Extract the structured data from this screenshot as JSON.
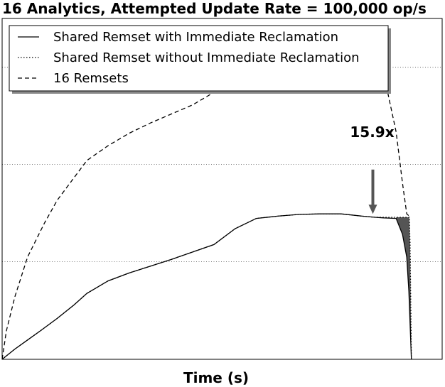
{
  "chart_data": {
    "type": "line",
    "title": "16 Analytics, Attempted Update Rate = 100,000 op/s",
    "xlabel": "Time (s)",
    "ylabel": "",
    "x_ticks_shown": false,
    "y_ticks_shown": false,
    "grid": "horizontal dotted",
    "legend_position": "top-left",
    "xlim": [
      0,
      100
    ],
    "ylim": [
      0,
      30
    ],
    "series": [
      {
        "name": "Shared Remset with Immediate Reclamation",
        "style": "solid",
        "color": "#000000",
        "x": [
          0,
          3,
          6,
          9,
          13,
          17,
          20,
          25,
          30,
          40,
          50,
          55,
          60,
          65,
          70,
          75,
          80,
          85,
          88,
          90,
          93,
          94.5,
          95.5,
          96,
          96.4,
          96.6
        ],
        "y": [
          0,
          0.9,
          1.7,
          2.5,
          3.6,
          4.8,
          5.8,
          6.9,
          7.6,
          8.8,
          10.1,
          11.5,
          12.4,
          12.6,
          12.75,
          12.8,
          12.8,
          12.6,
          12.5,
          12.45,
          12.4,
          11.0,
          9.0,
          6.0,
          2.0,
          0
        ]
      },
      {
        "name": "Shared Remset without Immediate Reclamation",
        "style": "dotted",
        "color": "#000000",
        "x": [
          0,
          3,
          6,
          9,
          13,
          17,
          20,
          25,
          30,
          40,
          50,
          55,
          60,
          65,
          70,
          75,
          80,
          85,
          88,
          90,
          93,
          95.5,
          96.1,
          96.3,
          96.6
        ],
        "y": [
          0,
          0.9,
          1.7,
          2.5,
          3.6,
          4.8,
          5.8,
          6.9,
          7.6,
          8.8,
          10.1,
          11.5,
          12.4,
          12.6,
          12.75,
          12.8,
          12.8,
          12.6,
          12.5,
          12.5,
          12.5,
          12.5,
          12.5,
          10.0,
          0
        ]
      },
      {
        "name": "16 Remsets",
        "style": "dashed",
        "color": "#000000",
        "x": [
          0,
          1,
          3,
          6,
          10,
          13,
          17,
          20,
          25,
          30,
          35,
          40,
          45,
          50,
          55,
          60,
          65,
          70,
          75,
          80,
          85,
          87,
          89,
          91,
          93,
          94.5,
          95.5,
          96.1
        ],
        "y": [
          0,
          2.5,
          5.5,
          9.0,
          12.0,
          14.0,
          16.0,
          17.5,
          18.8,
          19.9,
          20.8,
          21.6,
          22.4,
          23.5,
          24.9,
          25.9,
          26.5,
          26.9,
          27.1,
          27.3,
          27.3,
          27.0,
          25.8,
          23.5,
          20.0,
          15.5,
          12.8,
          12.6
        ]
      }
    ],
    "annotations": [
      {
        "text": "15.9x",
        "type": "double-arrow",
        "x": 87.5,
        "y_from": 12.8,
        "y_to": 27.3
      }
    ]
  }
}
